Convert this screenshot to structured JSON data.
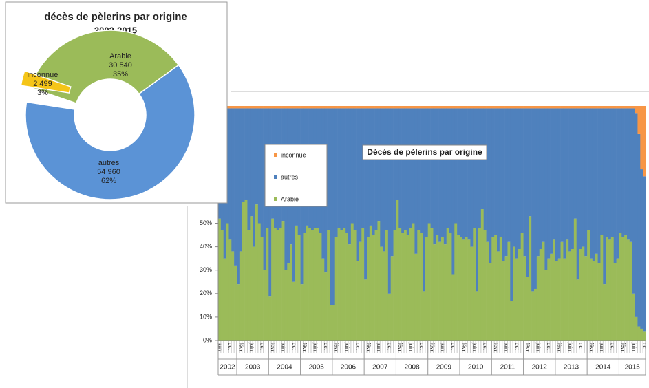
{
  "chart_data": [
    {
      "type": "pie",
      "title": "décès de pèlerins par origine",
      "subtitle": "2002-2015",
      "categories": [
        "Arabie",
        "autres",
        "inconnue"
      ],
      "values": [
        30540,
        54960,
        2499
      ],
      "value_labels": [
        "30 540",
        "54 960",
        "2 499"
      ],
      "percents": [
        35,
        62,
        3
      ],
      "percent_labels": [
        "35%",
        "62%",
        "3%"
      ],
      "colors": [
        "#9bbb59",
        "#5b93d6",
        "#f5c518"
      ]
    },
    {
      "type": "bar",
      "stacked": true,
      "title": "Décès de pèlerins par origine",
      "categories": [
        "juin",
        null,
        null,
        null,
        "oct",
        null,
        null,
        null,
        "févr",
        null,
        null,
        null,
        "juin",
        null,
        null,
        null,
        "oct",
        null,
        null,
        null,
        "févr",
        null,
        null,
        null,
        "juin",
        null,
        null,
        null,
        "oct",
        null,
        null,
        null,
        "févr",
        null,
        null,
        null,
        "juin",
        null,
        null,
        null,
        "oct",
        null,
        null,
        null,
        "févr",
        null,
        null,
        null,
        "juin",
        null,
        null,
        null,
        "oct",
        null,
        null,
        null,
        "févr",
        null,
        null,
        null,
        "juin",
        null,
        null,
        null,
        "oct",
        null,
        null,
        null,
        "févr",
        null,
        null,
        null,
        "juin",
        null,
        null,
        null,
        "oct",
        null,
        null,
        null,
        "févr",
        null,
        null,
        null,
        "juin",
        null,
        null,
        null,
        "oct",
        null,
        null,
        null,
        "févr",
        null,
        null,
        null,
        "juin",
        null,
        null,
        null,
        "oct",
        null,
        null,
        null,
        "févr",
        null,
        null,
        null,
        "juin",
        null,
        null,
        null,
        "oct",
        null,
        null,
        null,
        "févr",
        null,
        null,
        null,
        "juin",
        null,
        null,
        null,
        "oct",
        null,
        null,
        null,
        "févr",
        null,
        null,
        null,
        "juin",
        null,
        null,
        null,
        "oct",
        null,
        null,
        null,
        "févr",
        null,
        null,
        null,
        "juin",
        null,
        null,
        null,
        "oct",
        null,
        null,
        null,
        "févr",
        null,
        null,
        null,
        "juin",
        null,
        null,
        null,
        "oct"
      ],
      "groups": [
        {
          "label": "2002",
          "size": 7
        },
        {
          "label": "2003",
          "size": 12
        },
        {
          "label": "2004",
          "size": 12
        },
        {
          "label": "2005",
          "size": 12
        },
        {
          "label": "2006",
          "size": 12
        },
        {
          "label": "2007",
          "size": 12
        },
        {
          "label": "2008",
          "size": 12
        },
        {
          "label": "2009",
          "size": 12
        },
        {
          "label": "2010",
          "size": 12
        },
        {
          "label": "2011",
          "size": 12
        },
        {
          "label": "2012",
          "size": 12
        },
        {
          "label": "2013",
          "size": 12
        },
        {
          "label": "2014",
          "size": 12
        },
        {
          "label": "2015",
          "size": 10
        }
      ],
      "series": [
        {
          "name": "Arabie",
          "color": "#9bbb59",
          "values": [
            52,
            47,
            35,
            50,
            43,
            38,
            32,
            24,
            38,
            59,
            60,
            47,
            53,
            40,
            58,
            50,
            44,
            30,
            48,
            19,
            52,
            48,
            47,
            48,
            51,
            30,
            33,
            41,
            25,
            49,
            45,
            24,
            46,
            49,
            48,
            47,
            48,
            48,
            46,
            35,
            29,
            47,
            15,
            15,
            44,
            48,
            47,
            48,
            46,
            41,
            50,
            47,
            34,
            42,
            48,
            26,
            44,
            49,
            45,
            47,
            51,
            40,
            38,
            47,
            20,
            36,
            47,
            60,
            48,
            46,
            47,
            45,
            48,
            50,
            37,
            47,
            46,
            21,
            44,
            50,
            48,
            41,
            45,
            42,
            44,
            41,
            48,
            46,
            28,
            50,
            45,
            44,
            43,
            44,
            43,
            40,
            48,
            21,
            48,
            56,
            47,
            42,
            33,
            44,
            45,
            38,
            44,
            34,
            36,
            42,
            17,
            40,
            35,
            39,
            46,
            36,
            27,
            53,
            21,
            22,
            36,
            39,
            42,
            30,
            35,
            37,
            43,
            34,
            35,
            42,
            35,
            43,
            38,
            39,
            52,
            26,
            39,
            40,
            36,
            47,
            35,
            34,
            37,
            33,
            45,
            24,
            44,
            43,
            44,
            33,
            35,
            46,
            44,
            45,
            43,
            42,
            20,
            10,
            6,
            5,
            4
          ]
        },
        {
          "name": "autres",
          "color": "#4f81bd",
          "values": [
            47,
            52,
            64,
            49,
            56,
            61,
            67,
            75,
            61,
            40,
            39,
            52,
            46,
            59,
            41,
            49,
            55,
            69,
            51,
            80,
            47,
            51,
            52,
            51,
            48,
            69,
            66,
            58,
            74,
            50,
            54,
            75,
            53,
            50,
            51,
            52,
            51,
            51,
            53,
            64,
            70,
            52,
            84,
            84,
            55,
            51,
            52,
            51,
            53,
            58,
            49,
            52,
            65,
            57,
            51,
            73,
            55,
            50,
            54,
            52,
            48,
            59,
            61,
            52,
            79,
            63,
            52,
            39,
            51,
            53,
            52,
            54,
            51,
            49,
            62,
            52,
            53,
            78,
            55,
            49,
            51,
            58,
            54,
            57,
            55,
            58,
            51,
            53,
            71,
            49,
            54,
            55,
            56,
            55,
            56,
            59,
            51,
            78,
            51,
            43,
            52,
            57,
            66,
            55,
            54,
            61,
            55,
            65,
            63,
            57,
            82,
            59,
            64,
            60,
            53,
            63,
            72,
            46,
            78,
            77,
            63,
            60,
            57,
            69,
            64,
            62,
            56,
            65,
            64,
            57,
            64,
            56,
            61,
            60,
            47,
            73,
            60,
            59,
            63,
            52,
            64,
            65,
            62,
            66,
            54,
            75,
            55,
            56,
            55,
            66,
            64,
            53,
            55,
            54,
            56,
            57,
            79,
            87,
            82,
            68,
            66
          ]
        },
        {
          "name": "inconnue",
          "color": "#f79646",
          "values": [
            1,
            1,
            1,
            1,
            1,
            1,
            1,
            1,
            1,
            1,
            1,
            1,
            1,
            1,
            1,
            1,
            1,
            1,
            1,
            1,
            1,
            1,
            1,
            1,
            1,
            1,
            1,
            1,
            1,
            1,
            1,
            1,
            1,
            1,
            1,
            1,
            1,
            1,
            1,
            1,
            1,
            1,
            1,
            1,
            1,
            1,
            1,
            1,
            1,
            1,
            1,
            1,
            1,
            1,
            1,
            1,
            1,
            1,
            1,
            1,
            1,
            1,
            1,
            1,
            1,
            1,
            1,
            1,
            1,
            1,
            1,
            1,
            1,
            1,
            1,
            1,
            1,
            1,
            1,
            1,
            1,
            1,
            1,
            1,
            1,
            1,
            1,
            1,
            1,
            1,
            1,
            1,
            1,
            1,
            1,
            1,
            1,
            1,
            1,
            1,
            1,
            1,
            1,
            1,
            1,
            1,
            1,
            1,
            1,
            1,
            1,
            1,
            1,
            1,
            1,
            1,
            1,
            1,
            1,
            1,
            1,
            1,
            1,
            1,
            1,
            1,
            1,
            1,
            1,
            1,
            1,
            1,
            1,
            1,
            1,
            1,
            1,
            1,
            1,
            1,
            1,
            1,
            1,
            1,
            1,
            1,
            1,
            1,
            1,
            1,
            1,
            1,
            1,
            1,
            1,
            1,
            1,
            3,
            12,
            27,
            30
          ]
        }
      ],
      "ylim": [
        0,
        100
      ],
      "yticks": [
        {
          "value": 0,
          "label": "0%"
        },
        {
          "value": 10,
          "label": "10%"
        },
        {
          "value": 20,
          "label": "20%"
        },
        {
          "value": 30,
          "label": "30%"
        },
        {
          "value": 40,
          "label": "40%"
        },
        {
          "value": 50,
          "label": "50%"
        }
      ],
      "legend_order": [
        "inconnue",
        "autres",
        "Arabie"
      ]
    }
  ]
}
